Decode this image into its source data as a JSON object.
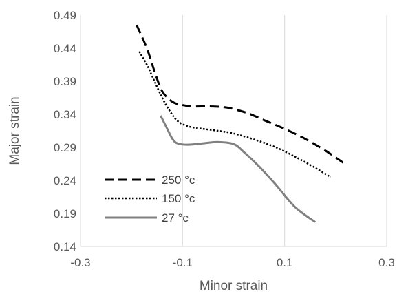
{
  "chart_data": {
    "type": "line",
    "xlabel": "Minor strain",
    "ylabel": "Major strain",
    "xlim": [
      -0.3,
      0.3
    ],
    "ylim": [
      0.14,
      0.49
    ],
    "x_ticks": [
      -0.3,
      -0.1,
      0.1,
      0.3
    ],
    "x_tick_labels": [
      "-0.3",
      "-0.1",
      "0.1",
      "0.3"
    ],
    "y_ticks": [
      0.14,
      0.19,
      0.24,
      0.29,
      0.34,
      0.39,
      0.44,
      0.49
    ],
    "y_tick_labels": [
      "0.14",
      "0.19",
      "0.24",
      "0.29",
      "0.34",
      "0.39",
      "0.44",
      "0.49"
    ],
    "grid": "vertical",
    "legend_position": "bottom-left",
    "series": [
      {
        "name": "250 °c",
        "style": "dashed",
        "color": "#000000",
        "x": [
          -0.19,
          -0.17,
          -0.155,
          -0.14,
          -0.12,
          -0.1,
          -0.08,
          -0.05,
          -0.02,
          0.0,
          0.03,
          0.06,
          0.1,
          0.14,
          0.18,
          0.22
        ],
        "y": [
          0.475,
          0.44,
          0.405,
          0.375,
          0.359,
          0.354,
          0.352,
          0.352,
          0.351,
          0.348,
          0.341,
          0.331,
          0.318,
          0.303,
          0.285,
          0.264
        ]
      },
      {
        "name": "150 °c",
        "style": "dotted",
        "color": "#000000",
        "x": [
          -0.185,
          -0.17,
          -0.155,
          -0.14,
          -0.125,
          -0.11,
          -0.09,
          -0.06,
          -0.03,
          0.0,
          0.04,
          0.08,
          0.12,
          0.16,
          0.19
        ],
        "y": [
          0.435,
          0.415,
          0.39,
          0.365,
          0.345,
          0.33,
          0.322,
          0.318,
          0.315,
          0.311,
          0.302,
          0.291,
          0.276,
          0.259,
          0.245
        ]
      },
      {
        "name": "27 °c",
        "style": "solid",
        "color": "#808080",
        "x": [
          -0.143,
          -0.13,
          -0.12,
          -0.11,
          -0.09,
          -0.06,
          -0.03,
          0.0,
          0.02,
          0.05,
          0.08,
          0.12,
          0.16
        ],
        "y": [
          0.338,
          0.318,
          0.303,
          0.296,
          0.294,
          0.296,
          0.298,
          0.295,
          0.283,
          0.261,
          0.236,
          0.2,
          0.177
        ]
      }
    ]
  }
}
